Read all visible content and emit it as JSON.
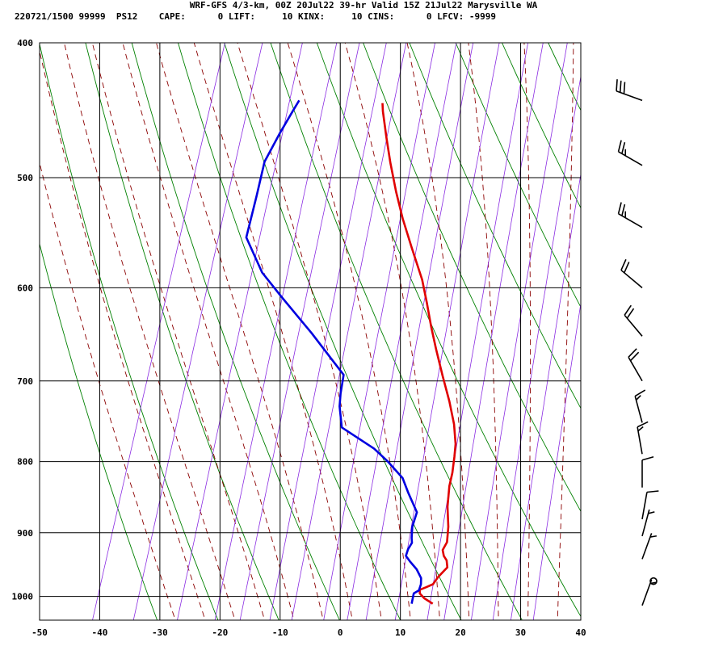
{
  "header": {
    "line1": "WRF-GFS 4/3-km, 00Z 20Jul22 39-hr Valid 15Z 21Jul22 Marysville WA",
    "line2": "220721/1500 99999  PS12    CAPE:      0 LIFT:     10 KINX:     10 CINS:      0 LFCV: -9999"
  },
  "chart_data": {
    "type": "line",
    "xlim": [
      -50,
      40
    ],
    "ylim": [
      1040,
      400
    ],
    "y_scale": "log-pressure",
    "x_ticks": [
      -50,
      -40,
      -30,
      -20,
      -10,
      0,
      10,
      20,
      30,
      40
    ],
    "y_ticks": [
      400,
      500,
      600,
      700,
      800,
      900,
      1000
    ],
    "series": [
      {
        "color": "#e00000",
        "points": [
          [
            14.5,
            1012
          ],
          [
            12.8,
            1003
          ],
          [
            11.8,
            995
          ],
          [
            11.6,
            989
          ],
          [
            12.5,
            985
          ],
          [
            13.5,
            980
          ],
          [
            14.0,
            968
          ],
          [
            15.0,
            953
          ],
          [
            14.5,
            942
          ],
          [
            13.8,
            935
          ],
          [
            13.3,
            926
          ],
          [
            13.6,
            914
          ],
          [
            13.0,
            891
          ],
          [
            11.8,
            862
          ],
          [
            11.0,
            833
          ],
          [
            10.8,
            815
          ],
          [
            10.3,
            794
          ],
          [
            9.8,
            777
          ],
          [
            8.5,
            752
          ],
          [
            6.5,
            724
          ],
          [
            4.0,
            694
          ],
          [
            1.5,
            664
          ],
          [
            -0.5,
            640
          ],
          [
            -2.5,
            615
          ],
          [
            -4.5,
            592
          ],
          [
            -8.0,
            561
          ],
          [
            -11.0,
            535
          ],
          [
            -13.5,
            512
          ],
          [
            -16.0,
            488
          ],
          [
            -18.0,
            468
          ],
          [
            -20.0,
            448
          ],
          [
            -20.5,
            442
          ]
        ]
      },
      {
        "color": "#0000e0",
        "points": [
          [
            11.0,
            1012
          ],
          [
            10.8,
            995
          ],
          [
            11.5,
            990
          ],
          [
            11.5,
            980
          ],
          [
            11.2,
            970
          ],
          [
            10.0,
            956
          ],
          [
            8.5,
            944
          ],
          [
            7.5,
            935
          ],
          [
            7.5,
            925
          ],
          [
            7.8,
            915
          ],
          [
            7.5,
            908
          ],
          [
            7.0,
            891
          ],
          [
            7.0,
            870
          ],
          [
            4.5,
            842
          ],
          [
            2.8,
            822
          ],
          [
            -0.5,
            800
          ],
          [
            -3.5,
            783
          ],
          [
            -10.0,
            756
          ],
          [
            -11.5,
            730
          ],
          [
            -12.0,
            715
          ],
          [
            -12.5,
            693
          ],
          [
            -20.0,
            647
          ],
          [
            -27.0,
            609
          ],
          [
            -31.5,
            585
          ],
          [
            -36.0,
            552
          ],
          [
            -36.5,
            515
          ],
          [
            -37.0,
            487
          ],
          [
            -36.0,
            465
          ],
          [
            -35.0,
            448
          ],
          [
            -34.5,
            440
          ]
        ]
      }
    ],
    "wind_barbs": [
      {
        "p": 440,
        "dir": 290,
        "speed": 30
      },
      {
        "p": 490,
        "dir": 300,
        "speed": 25
      },
      {
        "p": 543,
        "dir": 300,
        "speed": 25
      },
      {
        "p": 600,
        "dir": 310,
        "speed": 20
      },
      {
        "p": 650,
        "dir": 320,
        "speed": 20
      },
      {
        "p": 700,
        "dir": 330,
        "speed": 20
      },
      {
        "p": 750,
        "dir": 345,
        "speed": 15
      },
      {
        "p": 790,
        "dir": 350,
        "speed": 15
      },
      {
        "p": 835,
        "dir": 0,
        "speed": 10
      },
      {
        "p": 880,
        "dir": 10,
        "speed": 10
      },
      {
        "p": 905,
        "dir": 15,
        "speed": 5
      },
      {
        "p": 940,
        "dir": 20,
        "speed": 5
      },
      {
        "p": 975,
        "dir": 0,
        "speed": 0
      },
      {
        "p": 1015,
        "dir": 20,
        "speed": 5
      }
    ]
  }
}
